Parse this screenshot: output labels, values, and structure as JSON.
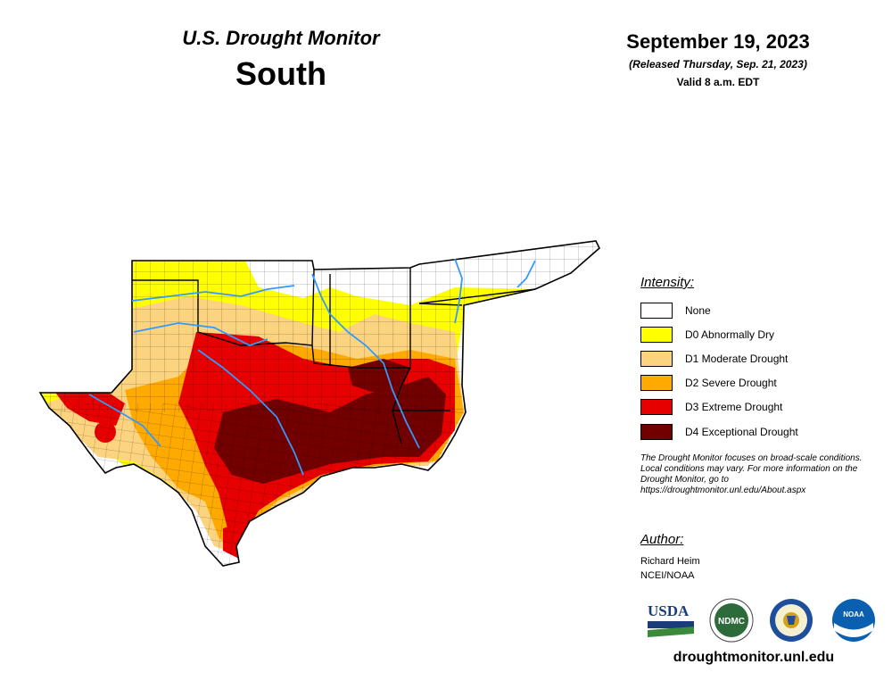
{
  "header": {
    "title": "U.S. Drought Monitor",
    "region": "South",
    "date": "September 19, 2023",
    "released": "(Released Thursday, Sep. 21, 2023)",
    "valid": "Valid 8 a.m. EDT"
  },
  "legend": {
    "title": "Intensity:",
    "items": [
      {
        "label": "None",
        "color": "#ffffff"
      },
      {
        "label": "D0 Abnormally Dry",
        "color": "#ffff00"
      },
      {
        "label": "D1 Moderate Drought",
        "color": "#fcd37f"
      },
      {
        "label": "D2 Severe Drought",
        "color": "#ffaa00"
      },
      {
        "label": "D3 Extreme Drought",
        "color": "#e60000"
      },
      {
        "label": "D4 Exceptional Drought",
        "color": "#730000"
      }
    ]
  },
  "note": "The Drought Monitor focuses on broad-scale conditions. Local conditions may vary. For more information on the Drought Monitor, go to https://droughtmonitor.unl.edu/About.aspx",
  "author": {
    "title": "Author:",
    "name": "Richard Heim",
    "org": "NCEI/NOAA"
  },
  "logos": [
    {
      "name": "usda-logo",
      "text": "USDA"
    },
    {
      "name": "ndmc-logo",
      "text": "NDMC"
    },
    {
      "name": "commerce-seal",
      "text": ""
    },
    {
      "name": "noaa-logo",
      "text": "NOAA"
    }
  ],
  "footer_url": "droughtmonitor.unl.edu",
  "colors": {
    "river": "#3399ff",
    "county_line": "#000000",
    "state_line": "#000000"
  }
}
